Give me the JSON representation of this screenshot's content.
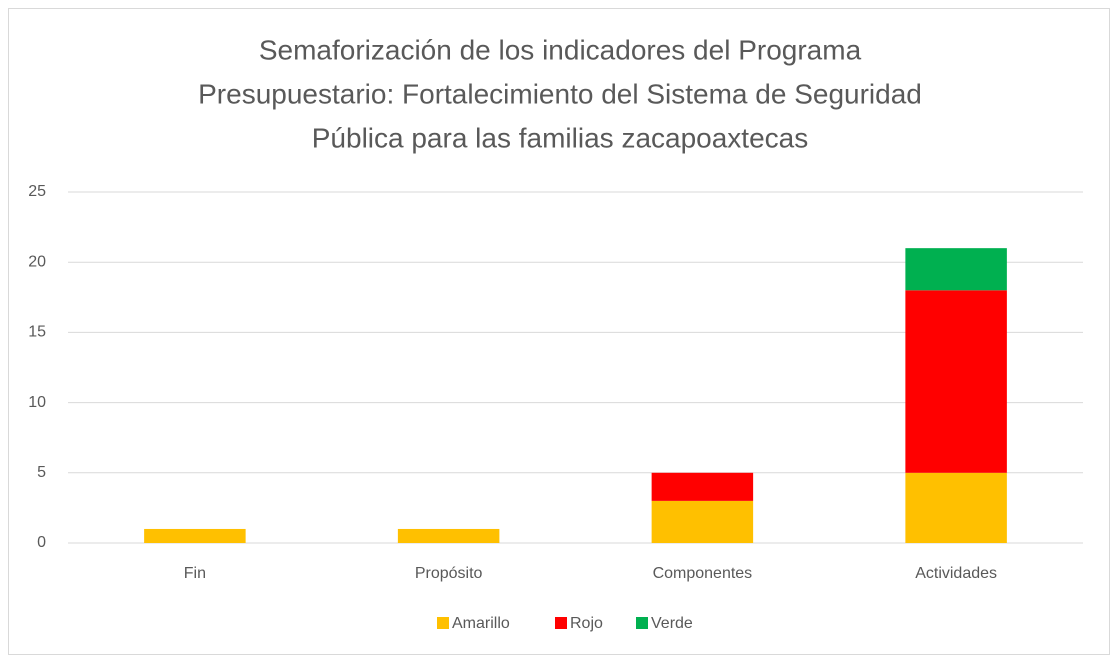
{
  "chart_data": {
    "type": "stacked_bar",
    "title": [
      "Semaforización de los indicadores del Programa",
      "Presupuestario: Fortalecimiento del Sistema de Seguridad",
      "Pública para las familias zacapoaxtecas"
    ],
    "categories": [
      "Fin",
      "Propósito",
      "Componentes",
      "Actividades"
    ],
    "series": [
      {
        "name": "Amarillo",
        "color": "#ffc000",
        "values": [
          1,
          1,
          3,
          5
        ]
      },
      {
        "name": "Rojo",
        "color": "#ff0000",
        "values": [
          0,
          0,
          2,
          13
        ]
      },
      {
        "name": "Verde",
        "color": "#00b050",
        "values": [
          0,
          0,
          0,
          3
        ]
      }
    ],
    "ylim": [
      0,
      25
    ],
    "yticks": [
      0,
      5,
      10,
      15,
      20,
      25
    ],
    "grid": true,
    "legend": "bottom"
  }
}
